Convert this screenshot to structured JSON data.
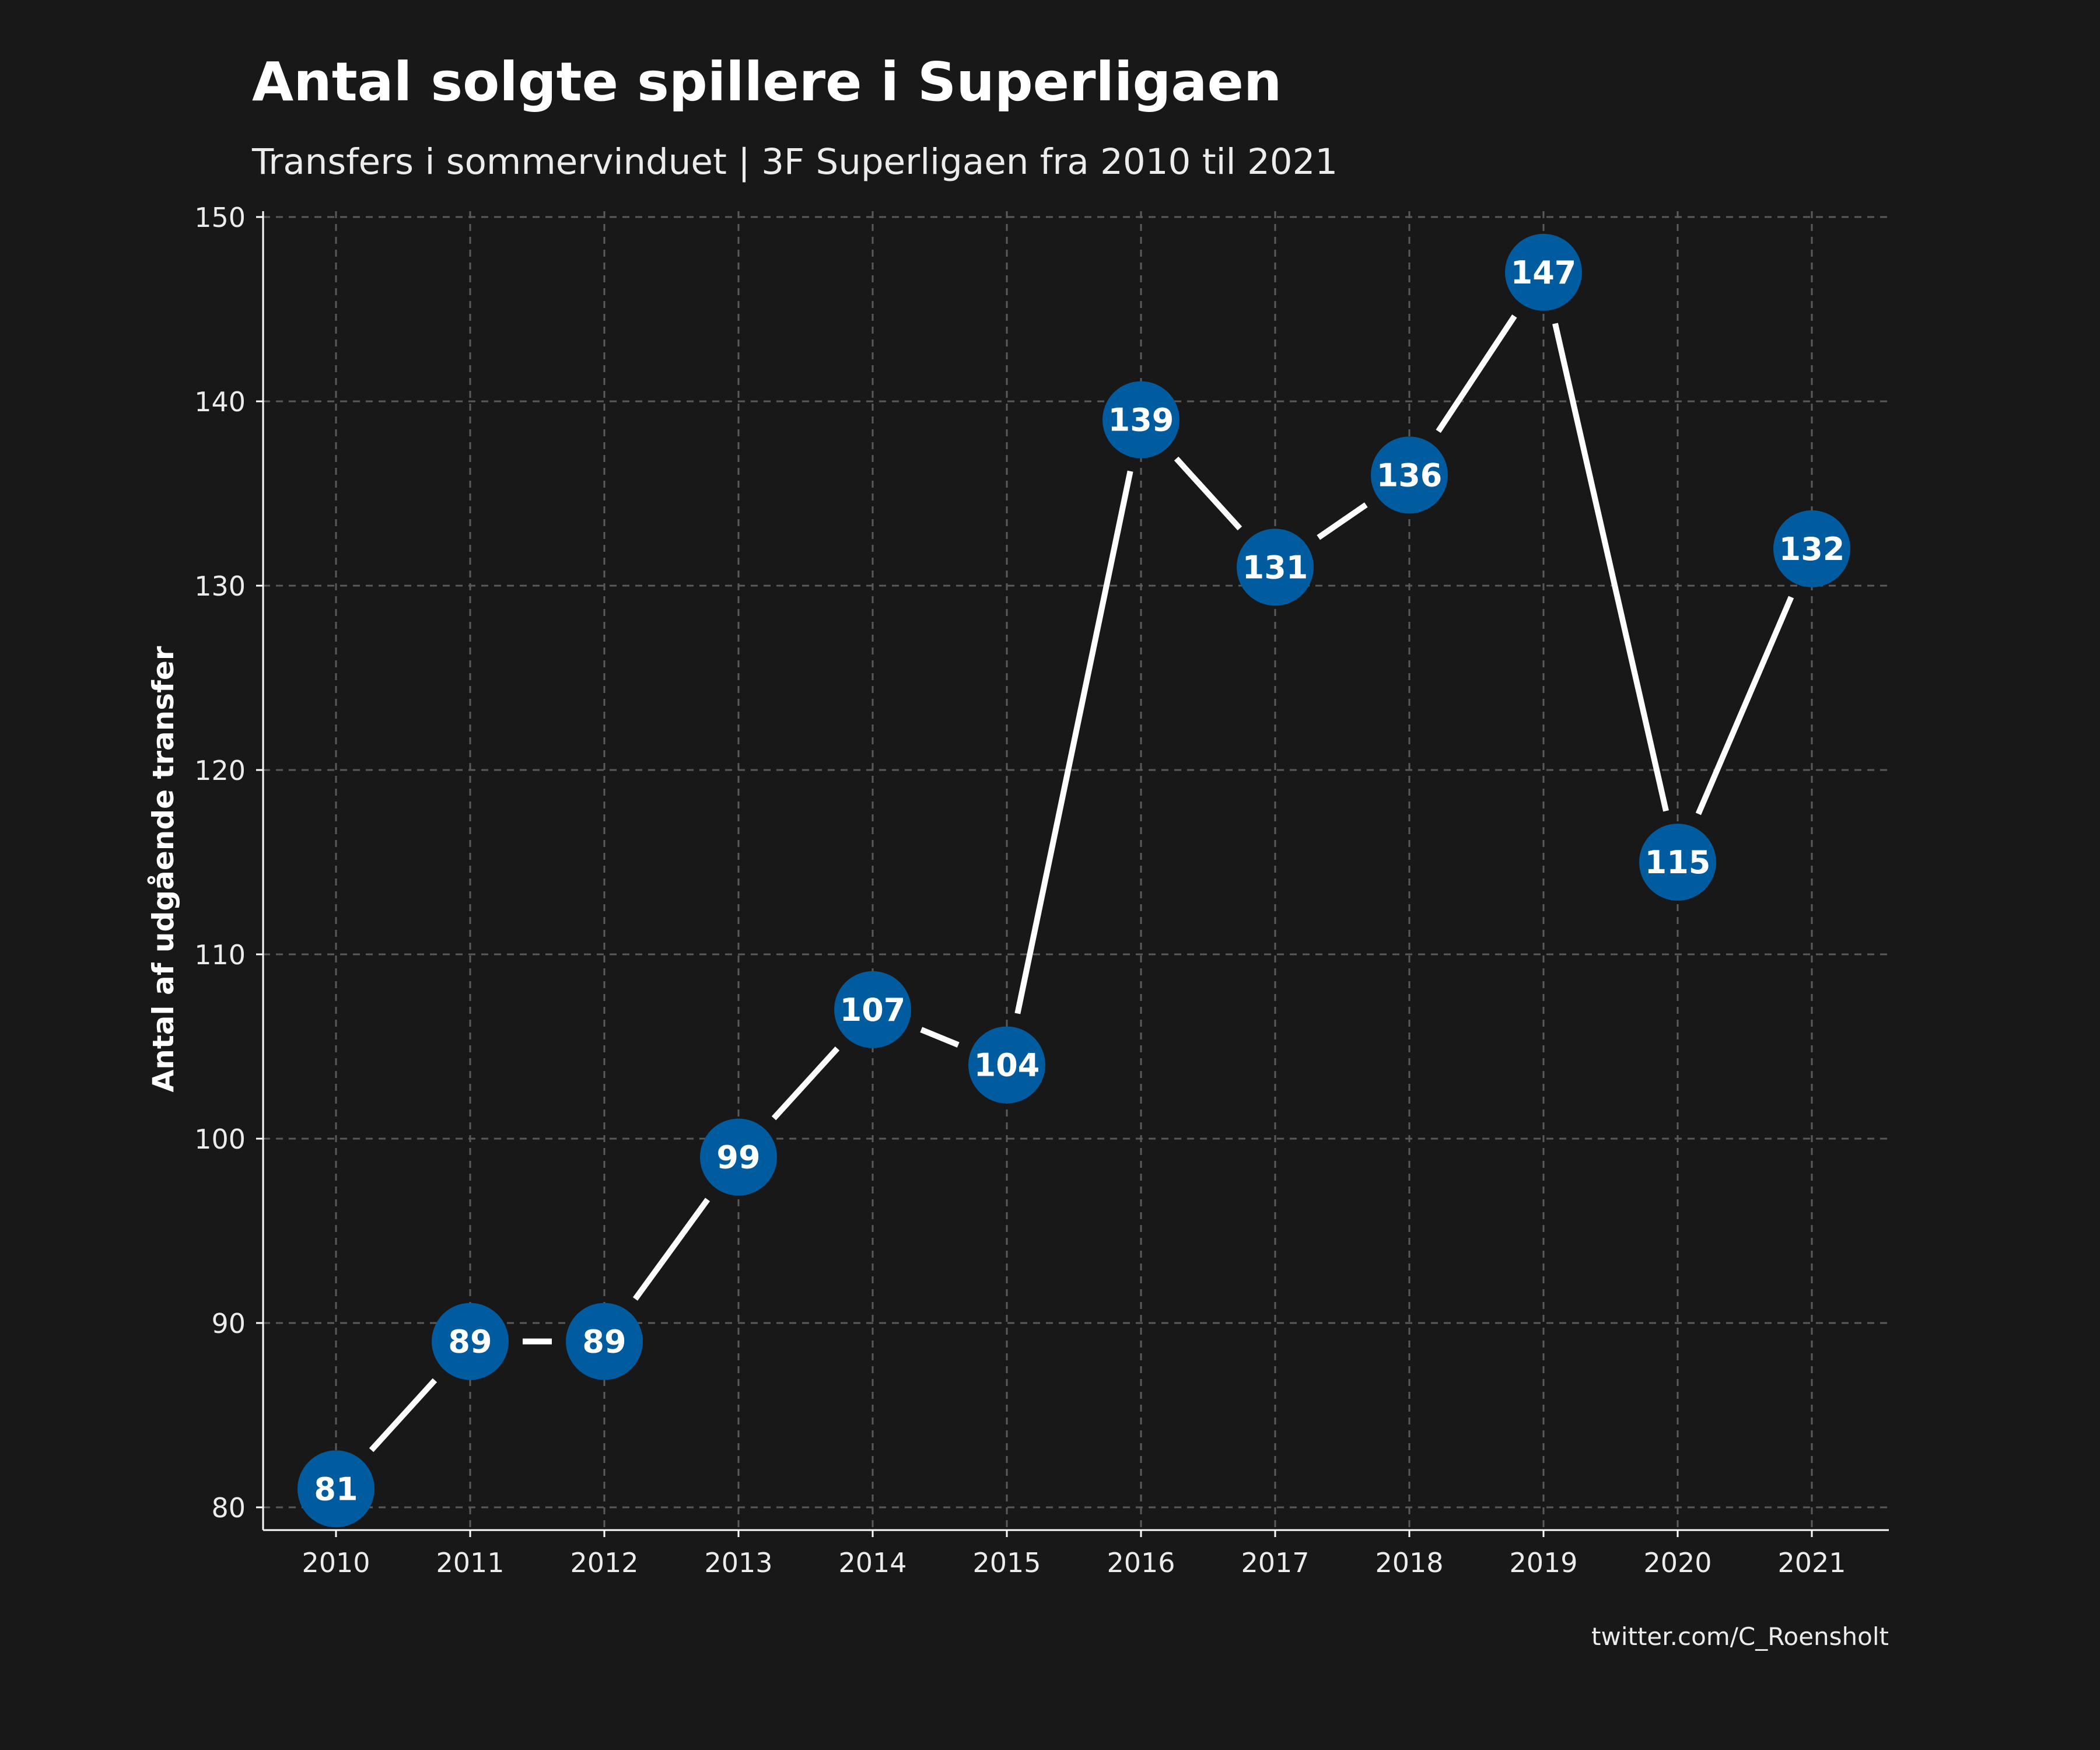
{
  "chart_data": {
    "type": "line",
    "title": "Antal solgte spillere i Superligaen",
    "subtitle": "Transfers i sommervinduet | 3F Superligaen fra 2010 til 2021",
    "xlabel": "",
    "ylabel": "Antal af udgående transfer",
    "caption": "twitter.com/C_Roensholt",
    "x": [
      2010,
      2011,
      2012,
      2013,
      2014,
      2015,
      2016,
      2017,
      2018,
      2019,
      2020,
      2021
    ],
    "y": [
      81,
      89,
      89,
      99,
      107,
      104,
      139,
      131,
      136,
      147,
      115,
      132
    ],
    "xticks": [
      "2010",
      "2011",
      "2012",
      "2013",
      "2014",
      "2015",
      "2016",
      "2017",
      "2018",
      "2019",
      "2020",
      "2021"
    ],
    "yticks": [
      "80",
      "90",
      "100",
      "110",
      "120",
      "130",
      "140",
      "150"
    ],
    "point_labels": [
      "81",
      "89",
      "89",
      "99",
      "107",
      "104",
      "139",
      "131",
      "136",
      "147",
      "115",
      "132"
    ],
    "ylim": [
      78,
      150.4
    ],
    "grid": true,
    "colors": {
      "background": "#181818",
      "line": "#ffffff",
      "marker": "#005b9f",
      "grid": "#5a5a5a",
      "text": "#ffffff"
    }
  }
}
